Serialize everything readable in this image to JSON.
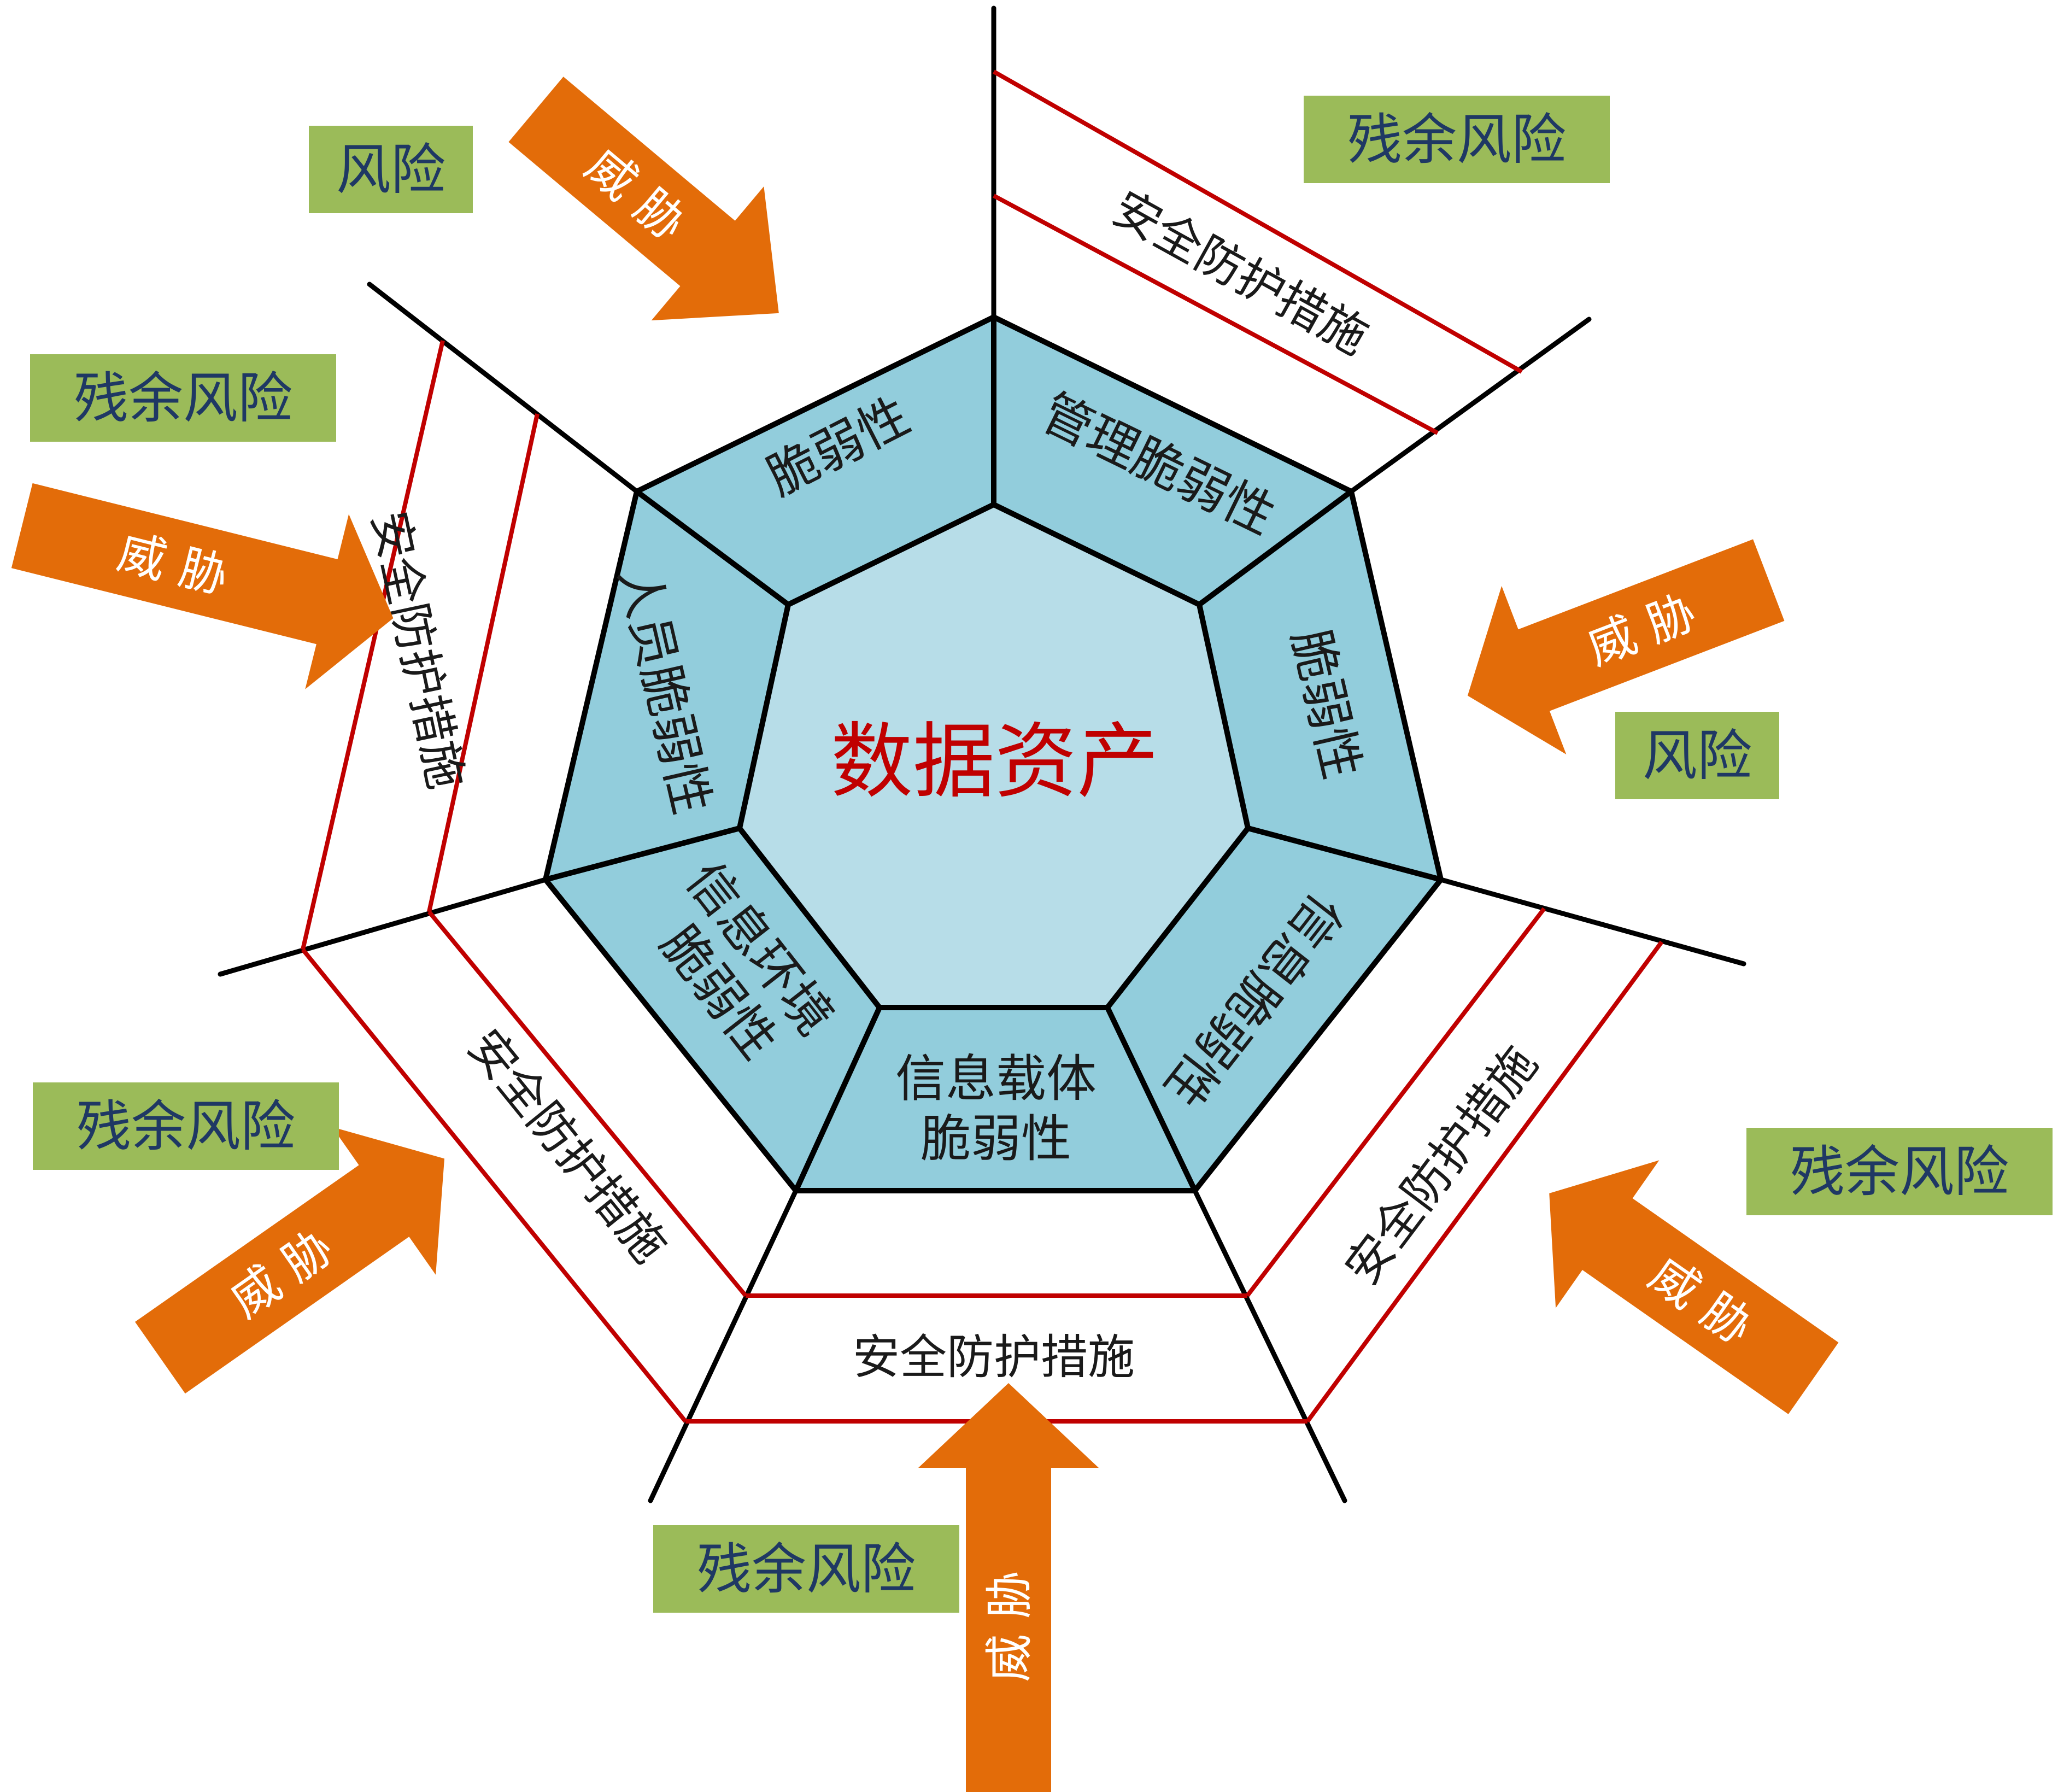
{
  "center": {
    "label": "数据资产"
  },
  "vulnerabilities": [
    {
      "id": "v-top-left",
      "label": "脆弱性"
    },
    {
      "id": "v-top-right",
      "label": "管理脆弱性"
    },
    {
      "id": "v-right",
      "label": "脆弱性"
    },
    {
      "id": "v-lower-right",
      "label": "信息脆弱性"
    },
    {
      "id": "v-bottom",
      "lines": [
        "信息载体",
        "脆弱性"
      ]
    },
    {
      "id": "v-lower-left",
      "lines": [
        "信息环境",
        "脆弱性"
      ]
    },
    {
      "id": "v-left",
      "label": "人员脆弱性"
    }
  ],
  "protection_label": "安全防护措施",
  "threat_label": "威 胁",
  "risk_label": "风险",
  "residual_risk_label": "残余风险",
  "colors": {
    "vulnerability_fill": "#92cddc",
    "center_fill": "#b7dde8",
    "center_text": "#c00000",
    "protection_line": "#c00000",
    "threat_arrow": "#e36c09",
    "risk_box": "#9bbb59",
    "risk_text": "#1f3864",
    "outline": "#000000"
  }
}
